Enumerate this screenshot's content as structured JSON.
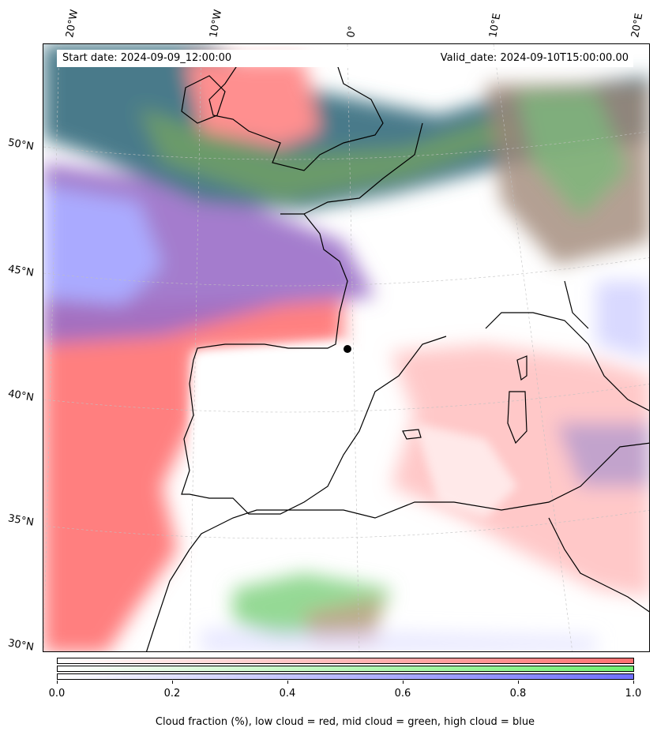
{
  "map": {
    "start_date": "Start date: 2024-09-09_12:00:00",
    "valid_date": "Valid_date: 2024-09-10T15:00:00.00",
    "lon_labels": [
      "20°W",
      "10°W",
      "0°",
      "10°E",
      "20°E"
    ],
    "lat_labels": [
      "50°N",
      "45°N",
      "40°N",
      "35°N",
      "30°N"
    ]
  },
  "colorbar": {
    "ticks": [
      "0.0",
      "0.2",
      "0.4",
      "0.6",
      "0.8",
      "1.0"
    ],
    "low_color": "#ff7070",
    "mid_color": "#70f070",
    "high_color": "#7070ff",
    "caption": "Cloud fraction (%), low cloud = red, mid cloud = green, high cloud = blue"
  }
}
